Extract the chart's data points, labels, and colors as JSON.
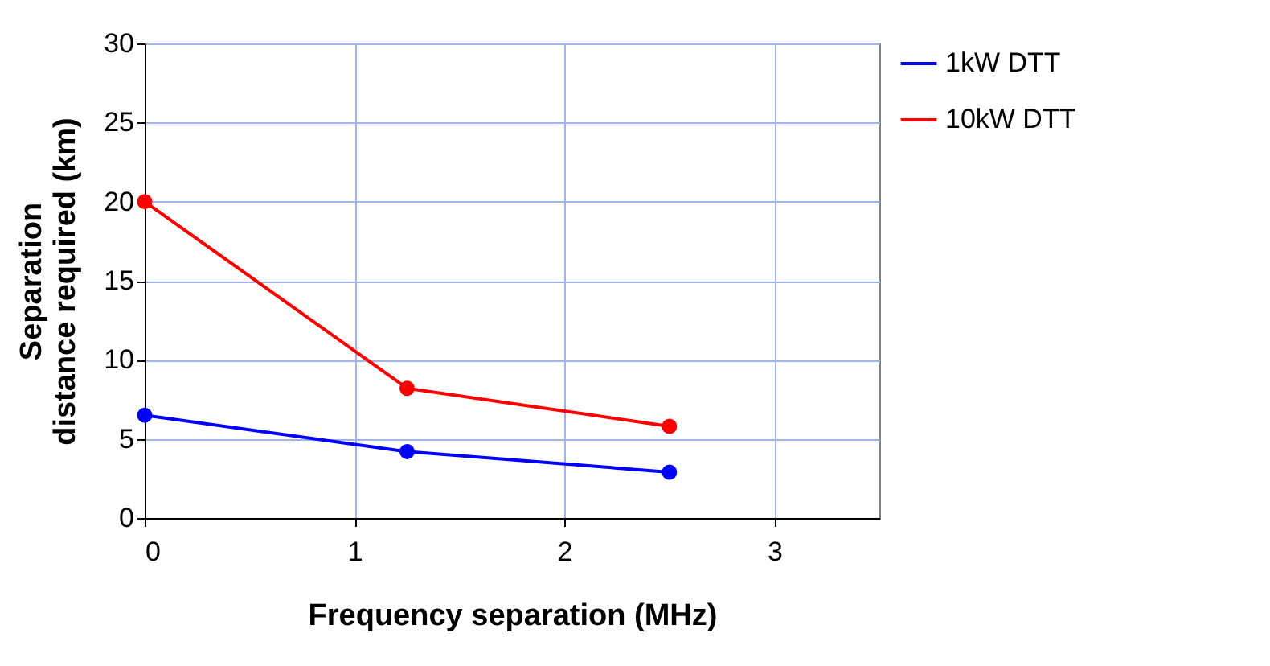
{
  "chart_data": {
    "type": "line",
    "xlabel": "Frequency separation (MHz)",
    "ylabel": "Separation distance required (km)",
    "x": [
      0,
      1.25,
      2.5
    ],
    "series": [
      {
        "name": "1kW DTT",
        "color": "#0000ff",
        "values": [
          6.5,
          4.2,
          2.9
        ]
      },
      {
        "name": "10kW DTT",
        "color": "#ff0000",
        "values": [
          20,
          8.2,
          5.8
        ]
      }
    ],
    "xlim": [
      0,
      3.5
    ],
    "xticks": [
      0,
      1,
      2,
      3
    ],
    "ylim": [
      0,
      30
    ],
    "yticks": [
      0,
      5,
      10,
      15,
      20,
      25,
      30
    ],
    "grid": true,
    "legend": "right",
    "marker": "circle",
    "line_style": "solid"
  }
}
